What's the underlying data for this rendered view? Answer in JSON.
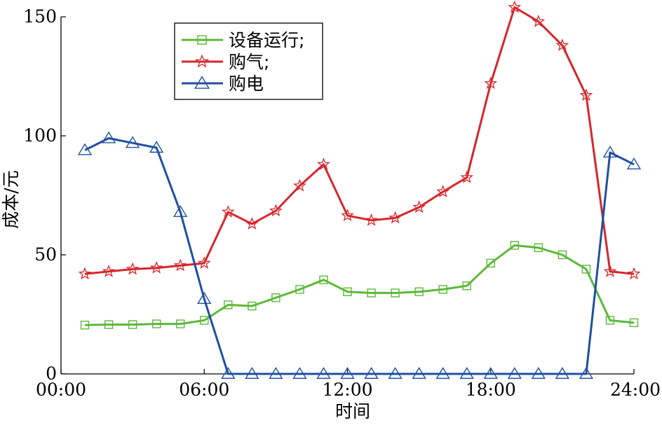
{
  "chart_data": {
    "type": "line",
    "xlabel": "时间",
    "ylabel": "成本/元",
    "xlim": [
      0,
      24
    ],
    "ylim": [
      0,
      150
    ],
    "x_ticks": [
      {
        "value": 0,
        "label": "00:00"
      },
      {
        "value": 6,
        "label": "06:00"
      },
      {
        "value": 12,
        "label": "12:00"
      },
      {
        "value": 18,
        "label": "18:00"
      },
      {
        "value": 24,
        "label": "24:00"
      }
    ],
    "y_ticks": [
      {
        "value": 0,
        "label": "0"
      },
      {
        "value": 50,
        "label": "50"
      },
      {
        "value": 100,
        "label": "100"
      },
      {
        "value": 150,
        "label": "150"
      }
    ],
    "grid": false,
    "legend_position": "top-left",
    "x": [
      1,
      2,
      3,
      4,
      5,
      6,
      7,
      8,
      9,
      10,
      11,
      12,
      13,
      14,
      15,
      16,
      17,
      18,
      19,
      20,
      21,
      22,
      23,
      24
    ],
    "series": [
      {
        "name": "设备运行;",
        "color": "#5cb83a",
        "marker": "square",
        "values": [
          20.5,
          20.7,
          20.7,
          21,
          21,
          22.5,
          29,
          28.5,
          32,
          35.5,
          39.5,
          34.5,
          34,
          34,
          34.5,
          35.5,
          37,
          46.5,
          54,
          53,
          50,
          44,
          22.5,
          21.5
        ]
      },
      {
        "name": "购气;",
        "color": "#d6262b",
        "marker": "star",
        "values": [
          42,
          43,
          44,
          44.5,
          45.5,
          46.5,
          68,
          63,
          68.5,
          79,
          88,
          66.5,
          64.5,
          65.5,
          70,
          76.5,
          82.5,
          122,
          154,
          148,
          138,
          117,
          43,
          42
        ]
      },
      {
        "name": "购电",
        "color": "#1f4fa0",
        "marker": "triangle",
        "values": [
          94,
          99,
          97,
          95,
          68,
          31.5,
          0,
          0,
          0,
          0,
          0,
          0,
          0,
          0,
          0,
          0,
          0,
          0,
          0,
          0,
          0,
          0,
          93,
          88
        ]
      }
    ]
  }
}
